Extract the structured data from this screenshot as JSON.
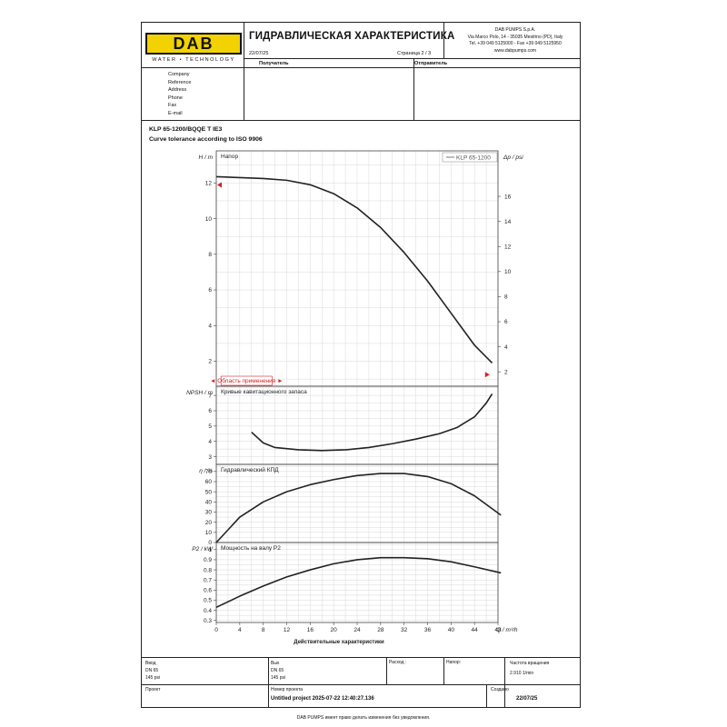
{
  "header": {
    "logo": "DAB",
    "logo_sub": "WATER • TECHNOLOGY",
    "title": "ГИДРАВЛИЧЕСКАЯ ХАРАКТЕРИСТИКА",
    "date": "22/07/25",
    "page": "Страница 2 / 3",
    "company_lines": [
      "DAB PUMPS S.p.A.",
      "Via Marco Polo, 14 - 35035 Mestrino (PD), Italy",
      "Tel. +39 049 5125000 - Fax +39 049 5125950",
      "www.dabpumps.com"
    ],
    "recipient_label": "Получатель",
    "sender_label": "Отправитель"
  },
  "contact_fields": [
    "Company",
    "Reference",
    "Address",
    "Phone",
    "Fax",
    "E-mail"
  ],
  "product": {
    "model": "KLP 65-1200/BQQE T IE3",
    "tolerance": "Curve tolerance according to ISO 9906"
  },
  "chart_data": [
    {
      "type": "line",
      "title": "Напор",
      "ylabel": "H / m",
      "ylabel_right": "Δp / psi",
      "legend": "KLP 65-1200",
      "range_label": "◄ Область применения ►",
      "x": [
        0,
        4,
        8,
        12,
        16,
        20,
        24,
        28,
        32,
        36,
        40,
        44,
        47
      ],
      "y": [
        12.35,
        12.3,
        12.25,
        12.15,
        11.9,
        11.4,
        10.6,
        9.5,
        8.1,
        6.5,
        4.7,
        2.9,
        1.9
      ],
      "xlim": [
        0,
        48
      ],
      "ylim": [
        0.6,
        13.8
      ],
      "yticks": [
        2,
        4,
        6,
        8,
        10,
        12
      ],
      "yticks_right": [
        2,
        4,
        6,
        8,
        10,
        12,
        14,
        16
      ]
    },
    {
      "type": "line",
      "title": "Кривые кавитационного запаса",
      "ylabel": "NPSH / m",
      "x": [
        6,
        8,
        10,
        14,
        18,
        22,
        26,
        30,
        34,
        38,
        41,
        44,
        46,
        47
      ],
      "y": [
        4.6,
        3.9,
        3.6,
        3.45,
        3.4,
        3.45,
        3.6,
        3.85,
        4.15,
        4.5,
        4.9,
        5.6,
        6.5,
        7.1
      ],
      "xlim": [
        0,
        48
      ],
      "ylim": [
        2.5,
        7.6
      ],
      "yticks": [
        3,
        4,
        5,
        6,
        7
      ]
    },
    {
      "type": "line",
      "title": "Гидравлический КПД",
      "ylabel": "η / %",
      "x": [
        0,
        4,
        8,
        12,
        16,
        20,
        24,
        28,
        32,
        36,
        40,
        44,
        48.5
      ],
      "y": [
        0,
        25,
        40,
        50,
        57,
        62,
        66,
        68,
        68,
        65,
        58,
        46,
        27
      ],
      "xlim": [
        0,
        48
      ],
      "ylim": [
        0,
        77
      ],
      "yticks": [
        0,
        10,
        20,
        30,
        40,
        50,
        60,
        70
      ]
    },
    {
      "type": "line",
      "title": "Мощность на валу P2",
      "ylabel": "P2 / kW",
      "x": [
        0,
        4,
        8,
        12,
        16,
        20,
        24,
        28,
        32,
        36,
        40,
        44,
        48.5
      ],
      "y": [
        0.43,
        0.54,
        0.64,
        0.73,
        0.8,
        0.86,
        0.9,
        0.92,
        0.92,
        0.91,
        0.88,
        0.83,
        0.77
      ],
      "xlim": [
        0,
        48
      ],
      "ylim": [
        0.28,
        1.07
      ],
      "yticks": [
        0.3,
        0.4,
        0.5,
        0.6,
        0.7,
        0.8,
        0.9,
        1
      ]
    }
  ],
  "x_axis": {
    "ticks": [
      0,
      4,
      8,
      12,
      16,
      20,
      24,
      28,
      32,
      36,
      40,
      44,
      48
    ],
    "unit": "Q / m³/h",
    "caption": "Действительные характеристики"
  },
  "footer": {
    "inlet_label": "Ввод",
    "inlet_dn": "DN 65",
    "inlet_p": "145 psi",
    "outlet_label": "Вых",
    "outlet_dn": "DN 65",
    "outlet_p": "145 psi",
    "flow_label": "Расход :",
    "head_label": "Напор:",
    "speed_label": "Частота вращения",
    "speed_value": "2.910 1/min",
    "project_label": "Проект",
    "project_no_label": "Номер проекта",
    "project_no_value": "Untitled project 2025-07-22 12:40:27.136",
    "created_label": "Создано",
    "created_value": "22/07/25",
    "disclaimer": "DAB PUMPS имеет право делать изменения без уведомления."
  },
  "colors": {
    "curve": "#222222",
    "grid": "#d9d9d9",
    "marker": "#d62020",
    "logo": "#f2d200"
  }
}
